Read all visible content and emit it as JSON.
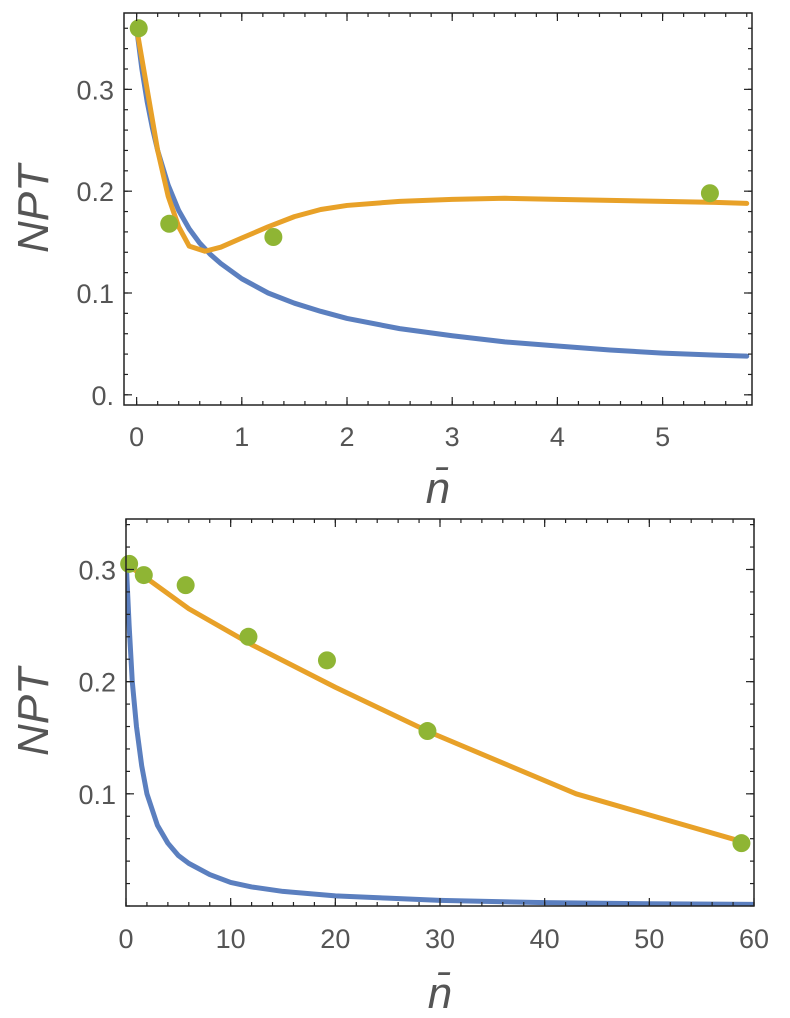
{
  "chart_data": [
    {
      "type": "line",
      "xlabel": "n̄",
      "ylabel": "NPT",
      "xlim": [
        -0.12,
        5.85
      ],
      "ylim": [
        -0.01,
        0.375
      ],
      "x_ticks": [
        {
          "value": 0,
          "label": "0"
        },
        {
          "value": 1,
          "label": "1"
        },
        {
          "value": 2,
          "label": "2"
        },
        {
          "value": 3,
          "label": "3"
        },
        {
          "value": 4,
          "label": "4"
        },
        {
          "value": 5,
          "label": "5"
        }
      ],
      "y_ticks": [
        {
          "value": 0,
          "label": "0."
        },
        {
          "value": 0.1,
          "label": "0.1"
        },
        {
          "value": 0.2,
          "label": "0.2"
        },
        {
          "value": 0.3,
          "label": "0.3"
        }
      ],
      "x_minor_step": 0.2,
      "y_minor_step": 0.02,
      "grid": false,
      "colors": {
        "blue": "#5b7fbf",
        "orange": "#e8a128",
        "green": "#8fb534"
      },
      "series": [
        {
          "kind": "line",
          "color": "blue",
          "x": [
            0.0,
            0.05,
            0.1,
            0.15,
            0.2,
            0.3,
            0.4,
            0.5,
            0.6,
            0.7,
            0.8,
            1.0,
            1.25,
            1.5,
            1.75,
            2.0,
            2.5,
            3.0,
            3.5,
            4.0,
            4.5,
            5.0,
            5.5,
            5.8
          ],
          "y": [
            0.36,
            0.32,
            0.288,
            0.262,
            0.24,
            0.206,
            0.181,
            0.163,
            0.149,
            0.138,
            0.129,
            0.114,
            0.1,
            0.09,
            0.082,
            0.075,
            0.065,
            0.058,
            0.052,
            0.048,
            0.044,
            0.041,
            0.039,
            0.038
          ]
        },
        {
          "kind": "line",
          "color": "orange",
          "x": [
            0.0,
            0.05,
            0.1,
            0.2,
            0.3,
            0.4,
            0.5,
            0.65,
            0.8,
            1.0,
            1.25,
            1.5,
            1.75,
            2.0,
            2.5,
            3.0,
            3.5,
            4.0,
            4.5,
            5.0,
            5.5,
            5.8
          ],
          "y": [
            0.36,
            0.33,
            0.3,
            0.24,
            0.195,
            0.165,
            0.146,
            0.141,
            0.145,
            0.154,
            0.165,
            0.175,
            0.182,
            0.186,
            0.19,
            0.192,
            0.193,
            0.192,
            0.191,
            0.19,
            0.189,
            0.188
          ]
        },
        {
          "kind": "scatter",
          "color": "green",
          "x": [
            0.02,
            0.31,
            1.3,
            5.45
          ],
          "y": [
            0.36,
            0.168,
            0.155,
            0.198
          ]
        }
      ]
    },
    {
      "type": "line",
      "xlabel": "n̄",
      "ylabel": "NPT",
      "xlim": [
        0,
        60
      ],
      "ylim": [
        0.0,
        0.345
      ],
      "x_ticks": [
        {
          "value": 0,
          "label": "0"
        },
        {
          "value": 10,
          "label": "10"
        },
        {
          "value": 20,
          "label": "20"
        },
        {
          "value": 30,
          "label": "30"
        },
        {
          "value": 40,
          "label": "40"
        },
        {
          "value": 50,
          "label": "50"
        },
        {
          "value": 60,
          "label": "60"
        }
      ],
      "y_ticks": [
        {
          "value": 0.1,
          "label": "0.1"
        },
        {
          "value": 0.2,
          "label": "0.2"
        },
        {
          "value": 0.3,
          "label": "0.3"
        }
      ],
      "x_minor_step": 2,
      "y_minor_step": 0.02,
      "grid": false,
      "colors": {
        "blue": "#5b7fbf",
        "orange": "#e8a128",
        "green": "#8fb534"
      },
      "series": [
        {
          "kind": "line",
          "color": "blue",
          "x": [
            0.0,
            0.3,
            0.6,
            1.0,
            1.5,
            2.0,
            3.0,
            4.0,
            5.0,
            6.0,
            8.0,
            10.0,
            12.0,
            15.0,
            20.0,
            25.0,
            30.0,
            40.0,
            50.0,
            60.0
          ],
          "y": [
            0.31,
            0.25,
            0.2,
            0.16,
            0.125,
            0.1,
            0.072,
            0.056,
            0.045,
            0.038,
            0.028,
            0.021,
            0.017,
            0.013,
            0.009,
            0.007,
            0.005,
            0.003,
            0.002,
            0.0015
          ]
        },
        {
          "kind": "line",
          "color": "orange",
          "x": [
            0,
            2,
            6,
            12,
            20,
            29,
            43,
            59
          ],
          "y": [
            0.305,
            0.292,
            0.265,
            0.233,
            0.195,
            0.155,
            0.1,
            0.057
          ]
        },
        {
          "kind": "scatter",
          "color": "green",
          "x": [
            0.3,
            1.7,
            5.7,
            11.7,
            19.2,
            28.8,
            58.8
          ],
          "y": [
            0.305,
            0.295,
            0.286,
            0.24,
            0.219,
            0.156,
            0.056
          ]
        }
      ]
    }
  ]
}
